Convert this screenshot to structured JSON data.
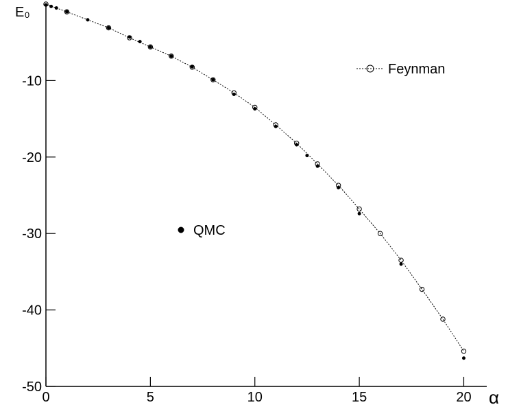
{
  "chart_data": {
    "type": "scatter",
    "x_label": "α",
    "y_label": "E₀",
    "xlim": [
      0,
      21.1
    ],
    "ylim": [
      -50,
      0
    ],
    "xticks": [
      0,
      5,
      10,
      15,
      20
    ],
    "yticks": [
      -50,
      -40,
      -30,
      -20,
      -10
    ],
    "series": [
      {
        "name": "Feynman",
        "color": "#000000",
        "marker": "open-circle",
        "line": "dotted",
        "x": [
          0,
          1,
          3,
          4,
          5,
          6,
          7,
          8,
          9,
          10,
          11,
          12,
          13,
          14,
          15,
          16,
          17,
          18,
          19,
          20
        ],
        "values": [
          0,
          -1.01,
          -3.1,
          -4.4,
          -5.6,
          -6.8,
          -8.25,
          -9.9,
          -11.6,
          -13.5,
          -15.8,
          -18.2,
          -20.9,
          -23.7,
          -26.8,
          -30.0,
          -33.5,
          -37.3,
          -41.2,
          -45.4
        ]
      },
      {
        "name": "QMC",
        "color": "#000000",
        "marker": "filled-dot",
        "x": [
          0,
          0.25,
          0.5,
          1,
          2,
          3,
          4,
          4.5,
          5,
          6,
          7,
          8,
          9,
          10,
          11,
          12,
          12.5,
          13,
          14,
          15,
          17,
          20
        ],
        "values": [
          -0.1,
          -0.3,
          -0.5,
          -1.0,
          -2.05,
          -3.1,
          -4.3,
          -4.9,
          -5.6,
          -6.8,
          -8.2,
          -9.9,
          -11.8,
          -13.7,
          -16.0,
          -18.4,
          -19.8,
          -21.2,
          -24.0,
          -27.4,
          -34.0,
          -46.3
        ]
      }
    ]
  }
}
